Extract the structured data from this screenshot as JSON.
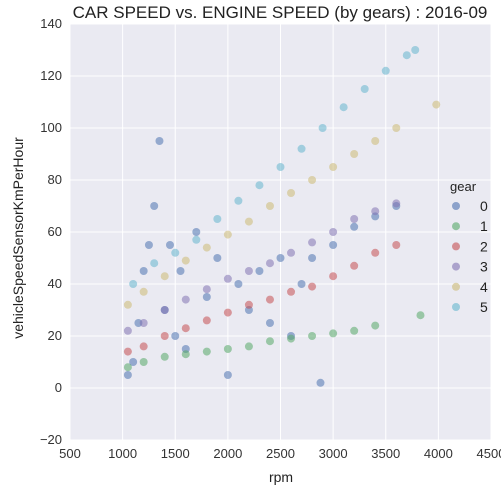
{
  "chart_data": {
    "type": "scatter",
    "title": "CAR SPEED vs. ENGINE SPEED (by gears) : 2016-09",
    "xlabel": "rpm",
    "ylabel": "vehicleSpeedSensorKmPerHour",
    "xlim": [
      500,
      4500
    ],
    "ylim": [
      -20,
      140
    ],
    "xticks": [
      500,
      1000,
      1500,
      2000,
      2500,
      3000,
      3500,
      4000,
      4500
    ],
    "yticks": [
      -20,
      0,
      20,
      40,
      60,
      80,
      100,
      120,
      140
    ],
    "grid": true,
    "background": "#EAEAF2",
    "legend": {
      "title": "gear",
      "placement": "right"
    },
    "series": [
      {
        "name": "0",
        "color": "#4C72B0",
        "points": [
          [
            1050,
            5
          ],
          [
            1100,
            10
          ],
          [
            1150,
            25
          ],
          [
            1200,
            45
          ],
          [
            1250,
            55
          ],
          [
            1300,
            70
          ],
          [
            1350,
            95
          ],
          [
            1400,
            30
          ],
          [
            1450,
            55
          ],
          [
            1500,
            20
          ],
          [
            1550,
            45
          ],
          [
            1600,
            15
          ],
          [
            1700,
            60
          ],
          [
            1800,
            35
          ],
          [
            1900,
            50
          ],
          [
            2000,
            5
          ],
          [
            2100,
            40
          ],
          [
            2200,
            30
          ],
          [
            2300,
            45
          ],
          [
            2400,
            25
          ],
          [
            2500,
            50
          ],
          [
            2600,
            20
          ],
          [
            2700,
            40
          ],
          [
            2800,
            50
          ],
          [
            2880,
            2
          ],
          [
            3000,
            55
          ],
          [
            3200,
            62
          ],
          [
            3400,
            66
          ],
          [
            3600,
            70
          ]
        ]
      },
      {
        "name": "1",
        "color": "#55A868",
        "points": [
          [
            1050,
            8
          ],
          [
            1200,
            10
          ],
          [
            1400,
            12
          ],
          [
            1600,
            13
          ],
          [
            1800,
            14
          ],
          [
            2000,
            15
          ],
          [
            2200,
            16
          ],
          [
            2400,
            18
          ],
          [
            2600,
            19
          ],
          [
            2800,
            20
          ],
          [
            3000,
            21
          ],
          [
            3200,
            22
          ],
          [
            3400,
            24
          ],
          [
            3830,
            28
          ]
        ]
      },
      {
        "name": "2",
        "color": "#C44E52",
        "points": [
          [
            1050,
            14
          ],
          [
            1200,
            16
          ],
          [
            1400,
            20
          ],
          [
            1600,
            23
          ],
          [
            1800,
            26
          ],
          [
            2000,
            29
          ],
          [
            2200,
            32
          ],
          [
            2400,
            34
          ],
          [
            2600,
            37
          ],
          [
            2800,
            39
          ],
          [
            3000,
            43
          ],
          [
            3200,
            47
          ],
          [
            3400,
            52
          ],
          [
            3600,
            55
          ]
        ]
      },
      {
        "name": "3",
        "color": "#8172B2",
        "points": [
          [
            1050,
            22
          ],
          [
            1200,
            25
          ],
          [
            1400,
            30
          ],
          [
            1600,
            34
          ],
          [
            1800,
            38
          ],
          [
            2000,
            42
          ],
          [
            2200,
            45
          ],
          [
            2400,
            48
          ],
          [
            2600,
            52
          ],
          [
            2800,
            56
          ],
          [
            3000,
            60
          ],
          [
            3200,
            65
          ],
          [
            3400,
            68
          ],
          [
            3600,
            71
          ]
        ]
      },
      {
        "name": "4",
        "color": "#CCB974",
        "points": [
          [
            1050,
            32
          ],
          [
            1200,
            37
          ],
          [
            1400,
            43
          ],
          [
            1600,
            49
          ],
          [
            1800,
            54
          ],
          [
            2000,
            59
          ],
          [
            2200,
            64
          ],
          [
            2400,
            70
          ],
          [
            2600,
            75
          ],
          [
            2800,
            80
          ],
          [
            3000,
            85
          ],
          [
            3200,
            90
          ],
          [
            3400,
            95
          ],
          [
            3600,
            100
          ],
          [
            3980,
            109
          ]
        ]
      },
      {
        "name": "5",
        "color": "#64B5CD",
        "points": [
          [
            1100,
            40
          ],
          [
            1300,
            48
          ],
          [
            1500,
            52
          ],
          [
            1700,
            57
          ],
          [
            1900,
            65
          ],
          [
            2100,
            72
          ],
          [
            2300,
            78
          ],
          [
            2500,
            85
          ],
          [
            2700,
            92
          ],
          [
            2900,
            100
          ],
          [
            3100,
            108
          ],
          [
            3300,
            115
          ],
          [
            3500,
            122
          ],
          [
            3700,
            128
          ],
          [
            3780,
            130
          ]
        ]
      }
    ]
  }
}
